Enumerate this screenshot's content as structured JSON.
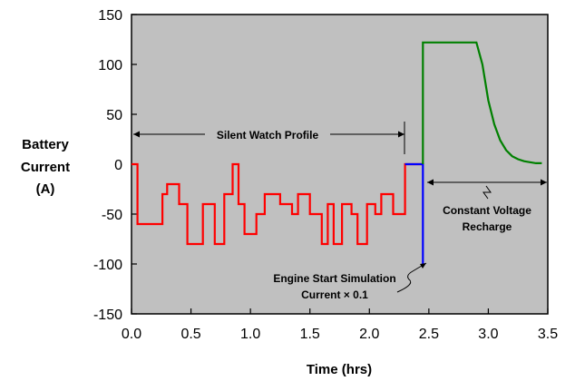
{
  "chart_data": {
    "type": "line",
    "xlabel": "Time (hrs)",
    "ylabel": [
      "Battery",
      "Current",
      "(A)"
    ],
    "xlim": [
      0,
      3.5
    ],
    "ylim": [
      -150,
      150
    ],
    "x_ticks": [
      0.0,
      0.5,
      1.0,
      1.5,
      2.0,
      2.5,
      3.0,
      3.5
    ],
    "x_tick_labels": [
      "0.0",
      "0.5",
      "1.0",
      "1.5",
      "2.0",
      "2.5",
      "3.0",
      "3.5"
    ],
    "y_ticks": [
      150,
      100,
      50,
      0,
      -50,
      -100,
      -150
    ],
    "y_tick_labels": [
      "150",
      "100",
      "50",
      "0",
      "-50",
      "-100",
      "-150"
    ],
    "grid": false,
    "plot_background": "#c0c0c0",
    "series": [
      {
        "color": "#ff0000",
        "points": [
          [
            0.0,
            0
          ],
          [
            0.05,
            0
          ],
          [
            0.05,
            -60
          ],
          [
            0.26,
            -60
          ],
          [
            0.26,
            -30
          ],
          [
            0.3,
            -30
          ],
          [
            0.3,
            -20
          ],
          [
            0.4,
            -20
          ],
          [
            0.4,
            -40
          ],
          [
            0.47,
            -40
          ],
          [
            0.47,
            -80
          ],
          [
            0.6,
            -80
          ],
          [
            0.6,
            -40
          ],
          [
            0.7,
            -40
          ],
          [
            0.7,
            -80
          ],
          [
            0.78,
            -80
          ],
          [
            0.78,
            -30
          ],
          [
            0.85,
            -30
          ],
          [
            0.85,
            0
          ],
          [
            0.9,
            0
          ],
          [
            0.9,
            -40
          ],
          [
            0.95,
            -40
          ],
          [
            0.95,
            -70
          ],
          [
            1.05,
            -70
          ],
          [
            1.05,
            -50
          ],
          [
            1.12,
            -50
          ],
          [
            1.12,
            -30
          ],
          [
            1.25,
            -30
          ],
          [
            1.25,
            -40
          ],
          [
            1.35,
            -40
          ],
          [
            1.35,
            -50
          ],
          [
            1.4,
            -50
          ],
          [
            1.4,
            -30
          ],
          [
            1.5,
            -30
          ],
          [
            1.5,
            -50
          ],
          [
            1.6,
            -50
          ],
          [
            1.6,
            -80
          ],
          [
            1.65,
            -80
          ],
          [
            1.65,
            -40
          ],
          [
            1.7,
            -40
          ],
          [
            1.7,
            -80
          ],
          [
            1.77,
            -80
          ],
          [
            1.77,
            -40
          ],
          [
            1.85,
            -40
          ],
          [
            1.85,
            -50
          ],
          [
            1.9,
            -50
          ],
          [
            1.9,
            -80
          ],
          [
            1.98,
            -80
          ],
          [
            1.98,
            -40
          ],
          [
            2.05,
            -40
          ],
          [
            2.05,
            -50
          ],
          [
            2.1,
            -50
          ],
          [
            2.1,
            -30
          ],
          [
            2.2,
            -30
          ],
          [
            2.2,
            -50
          ],
          [
            2.3,
            -50
          ],
          [
            2.3,
            0
          ],
          [
            2.45,
            0
          ]
        ]
      },
      {
        "color": "#0000ff",
        "points": [
          [
            2.3,
            0
          ],
          [
            2.45,
            0
          ],
          [
            2.45,
            -100
          ]
        ]
      },
      {
        "color": "#008000",
        "points": [
          [
            2.45,
            0
          ],
          [
            2.45,
            122
          ],
          [
            2.9,
            122
          ],
          [
            2.95,
            100
          ],
          [
            3.0,
            64
          ],
          [
            3.05,
            40
          ],
          [
            3.1,
            24
          ],
          [
            3.15,
            14
          ],
          [
            3.2,
            8
          ],
          [
            3.25,
            5
          ],
          [
            3.3,
            3
          ],
          [
            3.35,
            2
          ],
          [
            3.4,
            1
          ],
          [
            3.45,
            1
          ]
        ]
      }
    ],
    "annotations": {
      "silent_watch": "Silent Watch Profile",
      "recharge": [
        "Constant Voltage",
        "Recharge"
      ],
      "engine_start": [
        "Engine Start Simulation",
        "Current × 0.1"
      ]
    }
  }
}
